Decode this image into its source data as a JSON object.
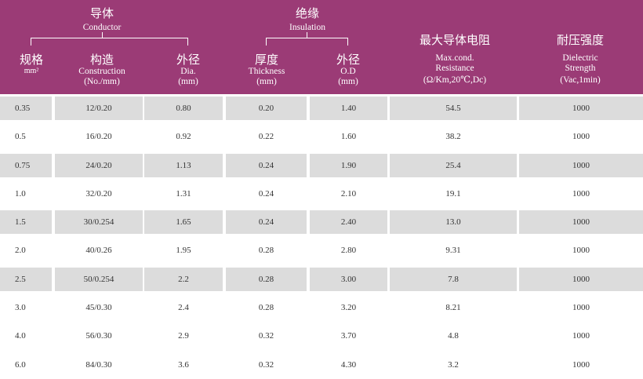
{
  "header": {
    "conductor": {
      "zh": "导体",
      "en": "Conductor"
    },
    "insulation": {
      "zh": "绝缘",
      "en": "Insulation"
    },
    "columns": [
      {
        "zh": "规格",
        "en": "mm²"
      },
      {
        "zh": "构造",
        "en1": "Construction",
        "en2": "(No./mm)"
      },
      {
        "zh": "外径",
        "en1": "Dia.",
        "en2": "(mm)"
      },
      {
        "zh": "厚度",
        "en1": "Thickness",
        "en2": "(mm)"
      },
      {
        "zh": "外径",
        "en1": "O.D",
        "en2": "(mm)"
      },
      {
        "zh": "最大导体电阻",
        "en1": "Max.cond.",
        "en2": "Resistance",
        "en3": "(Ω/Km,20℃,Dc)"
      },
      {
        "zh": "耐压强度",
        "en1": "Dielectric",
        "en2": "Strength",
        "en3": "(Vac,1min)"
      }
    ]
  },
  "rows": [
    {
      "size": "0.35",
      "construction": "12/0.20",
      "dia": "0.80",
      "thickness": "0.20",
      "od": "1.40",
      "resistance": "54.5",
      "strength": "1000"
    },
    {
      "size": "0.5",
      "construction": "16/0.20",
      "dia": "0.92",
      "thickness": "0.22",
      "od": "1.60",
      "resistance": "38.2",
      "strength": "1000"
    },
    {
      "size": "0.75",
      "construction": "24/0.20",
      "dia": "1.13",
      "thickness": "0.24",
      "od": "1.90",
      "resistance": "25.4",
      "strength": "1000"
    },
    {
      "size": "1.0",
      "construction": "32/0.20",
      "dia": "1.31",
      "thickness": "0.24",
      "od": "2.10",
      "resistance": "19.1",
      "strength": "1000"
    },
    {
      "size": "1.5",
      "construction": "30/0.254",
      "dia": "1.65",
      "thickness": "0.24",
      "od": "2.40",
      "resistance": "13.0",
      "strength": "1000"
    },
    {
      "size": "2.0",
      "construction": "40/0.26",
      "dia": "1.95",
      "thickness": "0.28",
      "od": "2.80",
      "resistance": "9.31",
      "strength": "1000"
    },
    {
      "size": "2.5",
      "construction": "50/0.254",
      "dia": "2.2",
      "thickness": "0.28",
      "od": "3.00",
      "resistance": "7.8",
      "strength": "1000"
    },
    {
      "size": "3.0",
      "construction": "45/0.30",
      "dia": "2.4",
      "thickness": "0.28",
      "od": "3.20",
      "resistance": "8.21",
      "strength": "1000"
    },
    {
      "size": "4.0",
      "construction": "56/0.30",
      "dia": "2.9",
      "thickness": "0.32",
      "od": "3.70",
      "resistance": "4.8",
      "strength": "1000"
    },
    {
      "size": "6.0",
      "construction": "84/0.30",
      "dia": "3.6",
      "thickness": "0.32",
      "od": "4.30",
      "resistance": "3.2",
      "strength": "1000"
    }
  ],
  "colors": {
    "header_bg": "#9b3b76",
    "header_text": "#ffffff",
    "shaded_row": "#dcdcdc",
    "body_text": "#333333"
  }
}
